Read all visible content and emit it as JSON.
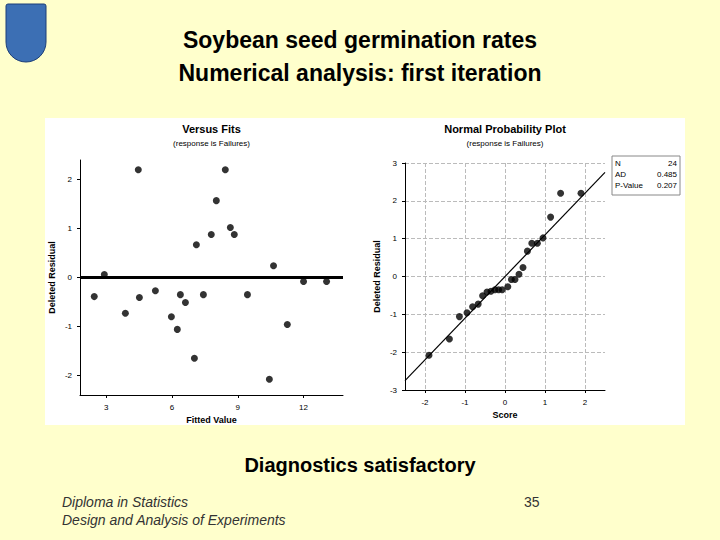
{
  "slide": {
    "title": [
      "Soybean seed germination rates",
      "Numerical analysis: first iteration"
    ],
    "caption": "Diagnostics satisfactory",
    "footer": [
      "Diploma in Statistics",
      "Design and Analysis of Experiments"
    ],
    "page": 35
  },
  "chart_data": [
    {
      "type": "scatter",
      "title": "Versus Fits",
      "subtitle": "(response is Failures)",
      "x_label": "Fitted Value",
      "y_label": "Deleted Residual",
      "x": [
        2.45,
        2.91,
        3.87,
        4.46,
        4.51,
        5.24,
        5.97,
        6.24,
        6.38,
        6.61,
        7.02,
        7.11,
        7.43,
        7.79,
        8.02,
        8.43,
        8.66,
        8.84,
        9.44,
        10.44,
        10.63,
        11.26,
        12.0,
        13.05
      ],
      "values": [
        -0.39,
        0.06,
        -0.73,
        2.2,
        -0.41,
        -0.27,
        -0.8,
        -1.06,
        -0.35,
        -0.51,
        -1.65,
        0.67,
        -0.35,
        0.88,
        1.57,
        2.2,
        1.02,
        0.88,
        -0.35,
        -2.08,
        0.24,
        -0.96,
        -0.08,
        -0.08
      ],
      "xlim": [
        1.8,
        13.8
      ],
      "xticks": [
        3,
        6,
        9,
        12
      ],
      "ylim": [
        -2.4,
        2.4
      ],
      "yticks": [
        -2,
        -1,
        0,
        1,
        2
      ],
      "reference_line": 0,
      "color": "#000000",
      "marker": "circle",
      "grid": false
    },
    {
      "type": "scatter",
      "title": "Normal Probability Plot",
      "subtitle": "(response is Failures)",
      "x_label": "Score",
      "y_label": "Deleted Residual",
      "x": [
        -1.9,
        -1.39,
        -1.14,
        -0.95,
        -0.81,
        -0.67,
        -0.56,
        -0.45,
        -0.35,
        -0.25,
        -0.16,
        -0.07,
        0.07,
        0.16,
        0.25,
        0.35,
        0.45,
        0.56,
        0.67,
        0.81,
        0.95,
        1.14,
        1.39,
        1.9
      ],
      "values": [
        -2.08,
        -1.65,
        -1.06,
        -0.96,
        -0.8,
        -0.73,
        -0.51,
        -0.41,
        -0.39,
        -0.35,
        -0.35,
        -0.35,
        -0.27,
        -0.08,
        -0.08,
        0.06,
        0.24,
        0.67,
        0.88,
        0.88,
        1.02,
        1.57,
        2.2,
        2.2
      ],
      "xlim": [
        -2.5,
        2.5
      ],
      "xticks": [
        -2,
        -1,
        0,
        1,
        2
      ],
      "ylim": [
        -3,
        3
      ],
      "yticks": [
        -3,
        -2,
        -1,
        0,
        1,
        2,
        3
      ],
      "fit_line": {
        "x": [
          -2.5,
          2.5
        ],
        "y": [
          -2.75,
          2.75
        ]
      },
      "stats": [
        {
          "label": "N",
          "value": 24
        },
        {
          "label": "AD",
          "value": 0.485
        },
        {
          "label": "P-Value",
          "value": 0.207
        }
      ],
      "color": "#000000",
      "marker": "circle",
      "grid": true
    }
  ]
}
